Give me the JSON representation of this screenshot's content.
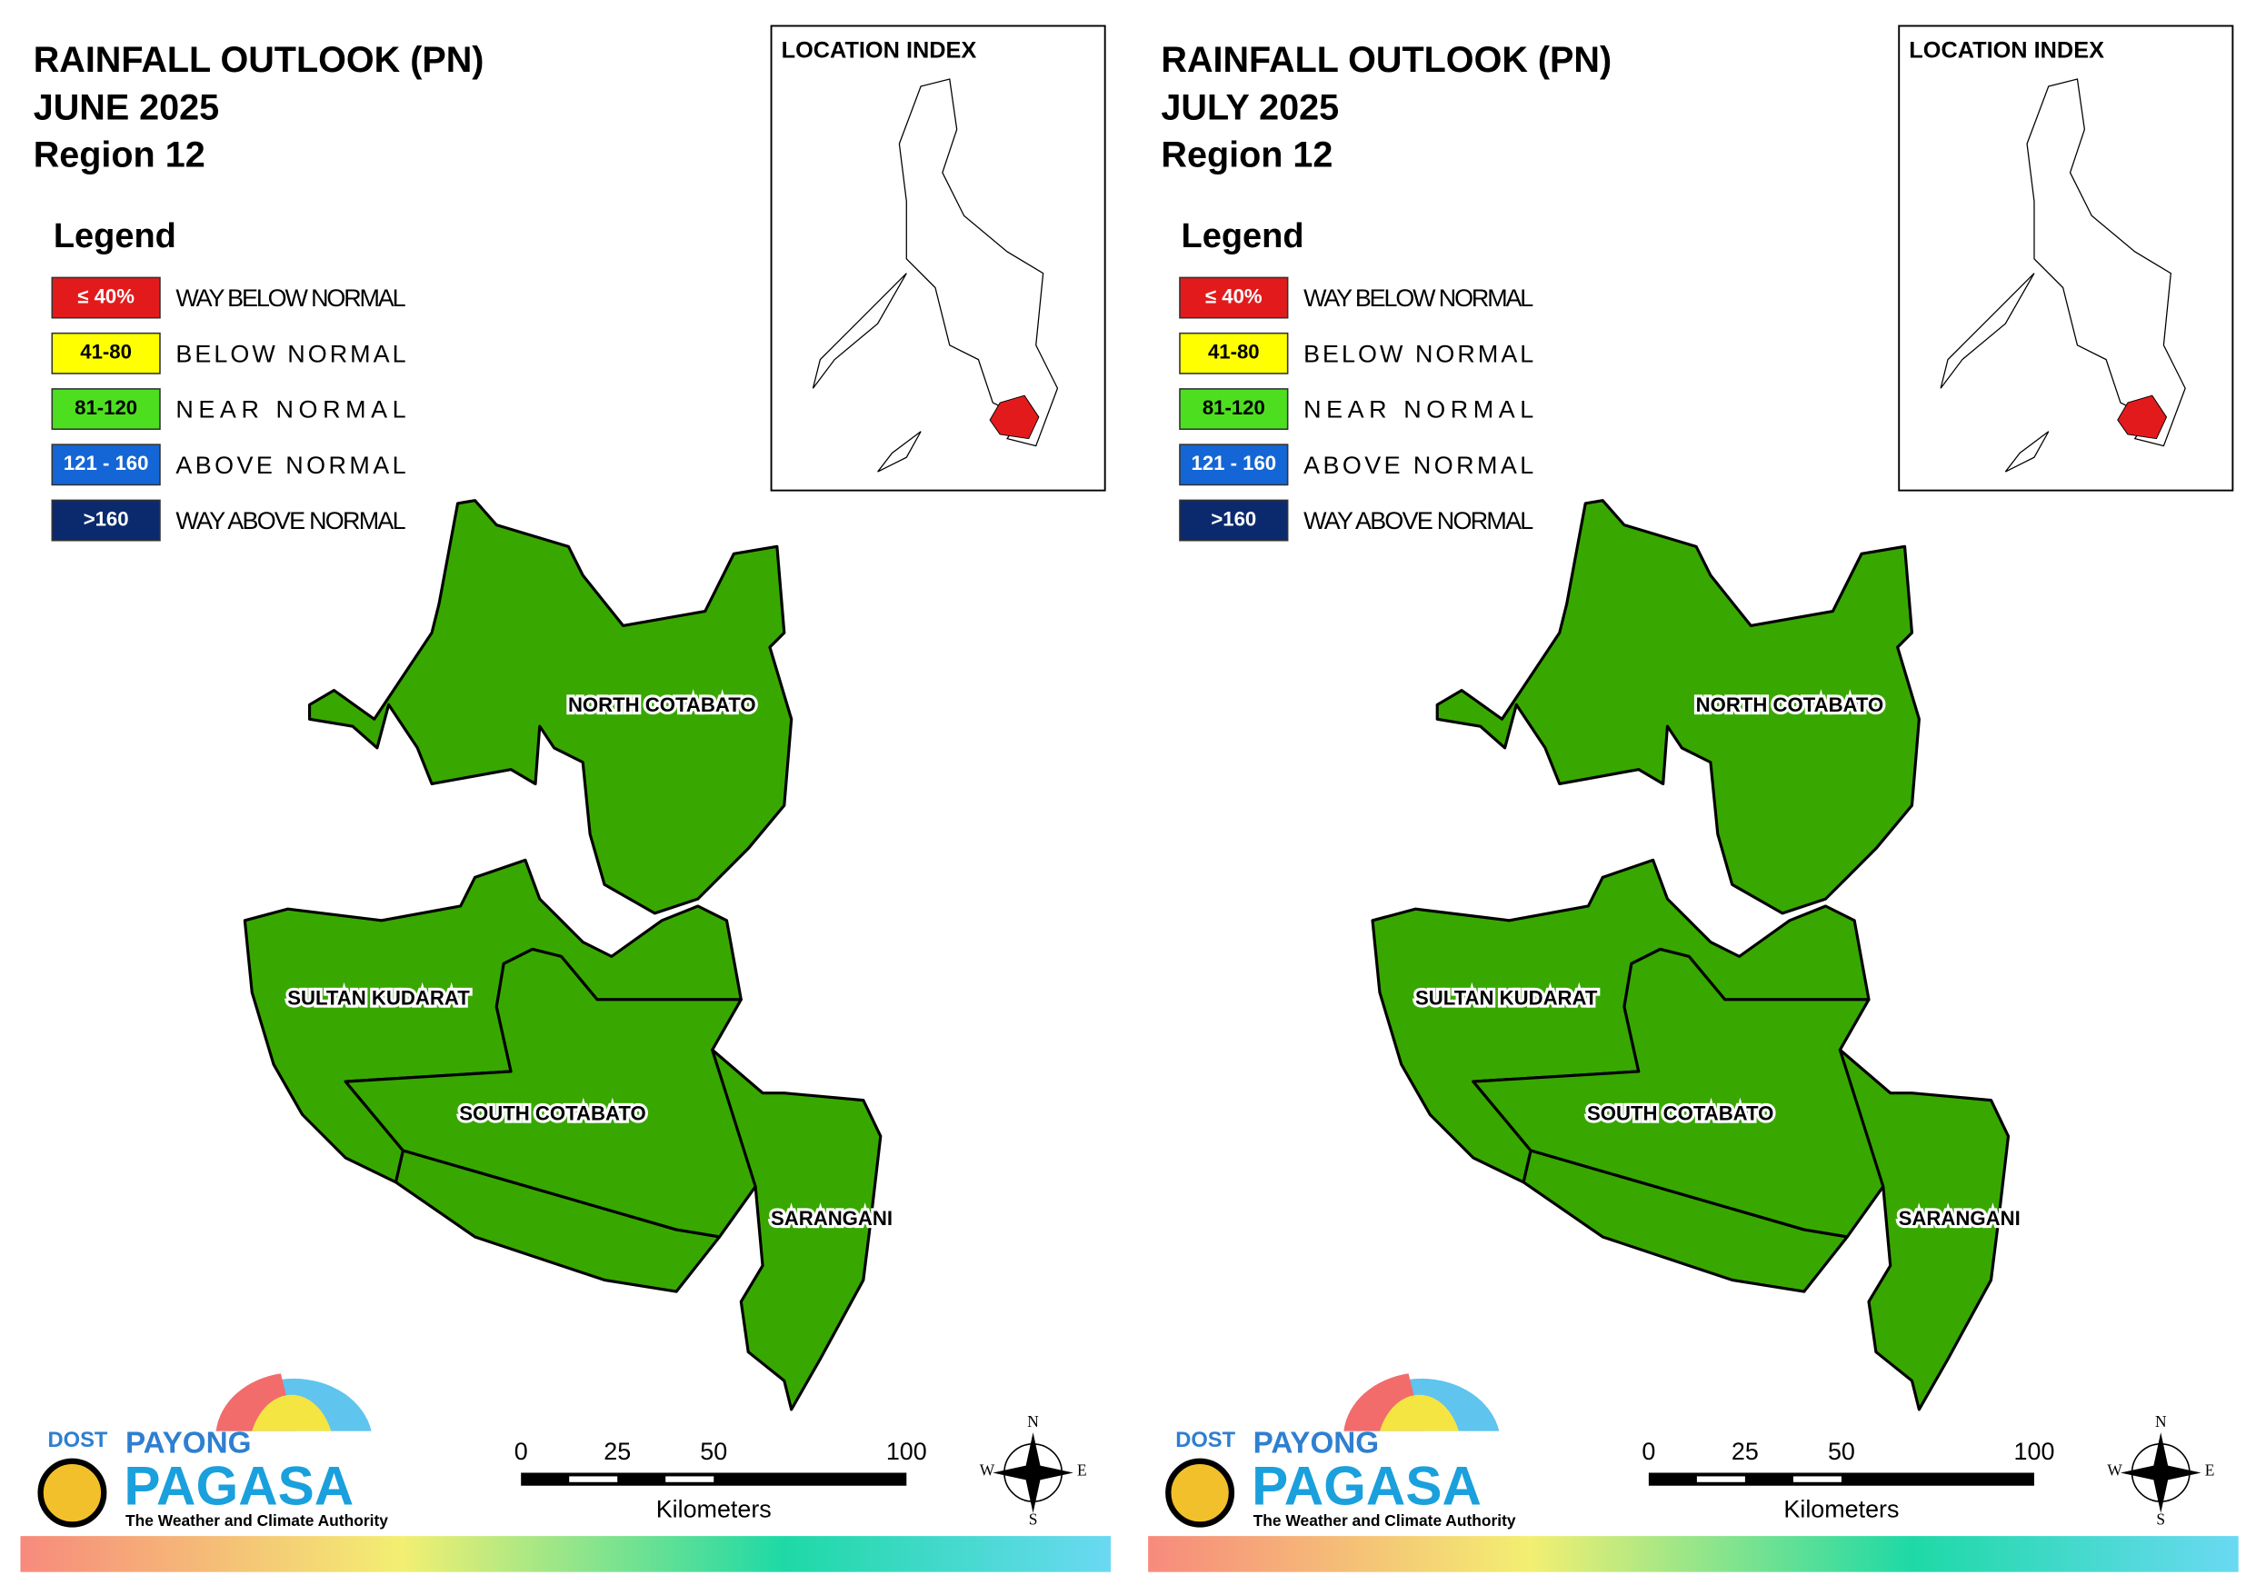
{
  "panels": [
    {
      "title": [
        "RAINFALL OUTLOOK (PN)",
        "JUNE 2025",
        "Region 12"
      ],
      "legend_title": "Legend",
      "legend": [
        {
          "range": "≤ 40%",
          "label": "WAY BELOW NORMAL",
          "color": "#e31a1c"
        },
        {
          "range": "41-80",
          "label": "BELOW NORMAL",
          "color": "#ffff00"
        },
        {
          "range": "81-120",
          "label": "NEAR NORMAL",
          "color": "#4ddf1f"
        },
        {
          "range": "121 - 160",
          "label": "ABOVE NORMAL",
          "color": "#1466d6"
        },
        {
          "range": ">160",
          "label": "WAY ABOVE NORMAL",
          "color": "#0b2a6e"
        }
      ],
      "fill": "#38a800",
      "regions": [
        "NORTH COTABATO",
        "SULTAN KUDARAT",
        "SOUTH COTABATO",
        "SARANGANI"
      ],
      "location_index": "LOCATION INDEX",
      "scale": {
        "ticks": [
          0,
          25,
          50,
          100
        ],
        "unit": "Kilometers"
      },
      "compass": [
        "N",
        "E",
        "S",
        "W"
      ],
      "logo": {
        "dost": "DOST",
        "payong": "PAYONG",
        "pagasa": "PAGASA",
        "tagline": "The Weather and Climate Authority"
      }
    },
    {
      "title": [
        "RAINFALL OUTLOOK (PN)",
        "JULY 2025",
        "Region 12"
      ],
      "legend_title": "Legend",
      "legend": [
        {
          "range": "≤ 40%",
          "label": "WAY BELOW NORMAL",
          "color": "#e31a1c"
        },
        {
          "range": "41-80",
          "label": "BELOW NORMAL",
          "color": "#ffff00"
        },
        {
          "range": "81-120",
          "label": "NEAR NORMAL",
          "color": "#4ddf1f"
        },
        {
          "range": "121 - 160",
          "label": "ABOVE NORMAL",
          "color": "#1466d6"
        },
        {
          "range": ">160",
          "label": "WAY ABOVE NORMAL",
          "color": "#0b2a6e"
        }
      ],
      "fill": "#38a800",
      "regions": [
        "NORTH COTABATO",
        "SULTAN KUDARAT",
        "SOUTH COTABATO",
        "SARANGANI"
      ],
      "location_index": "LOCATION INDEX",
      "scale": {
        "ticks": [
          0,
          25,
          50,
          100
        ],
        "unit": "Kilometers"
      },
      "compass": [
        "N",
        "E",
        "S",
        "W"
      ],
      "logo": {
        "dost": "DOST",
        "payong": "PAYONG",
        "pagasa": "PAGASA",
        "tagline": "The Weather and Climate Authority"
      }
    }
  ]
}
